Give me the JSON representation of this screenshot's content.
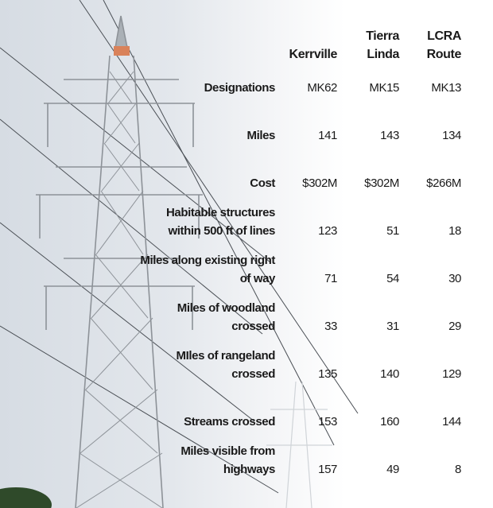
{
  "table": {
    "header": [
      "Kerrville",
      "Tierra Linda",
      "LCRA Route"
    ],
    "rows": [
      [
        "Designations",
        "MK62",
        "MK15",
        "MK13"
      ],
      [
        "Miles",
        "141",
        "143",
        "134"
      ],
      [
        "Cost",
        "$302M",
        "$302M",
        "$266M"
      ],
      [
        "Habitable structures within 500 ft of lines",
        "123",
        "51",
        "18"
      ],
      [
        "Miles along existing right of way",
        "71",
        "54",
        "30"
      ],
      [
        "Miles of woodland crossed",
        "33",
        "31",
        "29"
      ],
      [
        "MIles of rangeland crossed",
        "135",
        "140",
        "129"
      ],
      [
        "Streams crossed",
        "153",
        "160",
        "144"
      ],
      [
        "Miles visible from highways",
        "157",
        "49",
        "8"
      ]
    ]
  }
}
